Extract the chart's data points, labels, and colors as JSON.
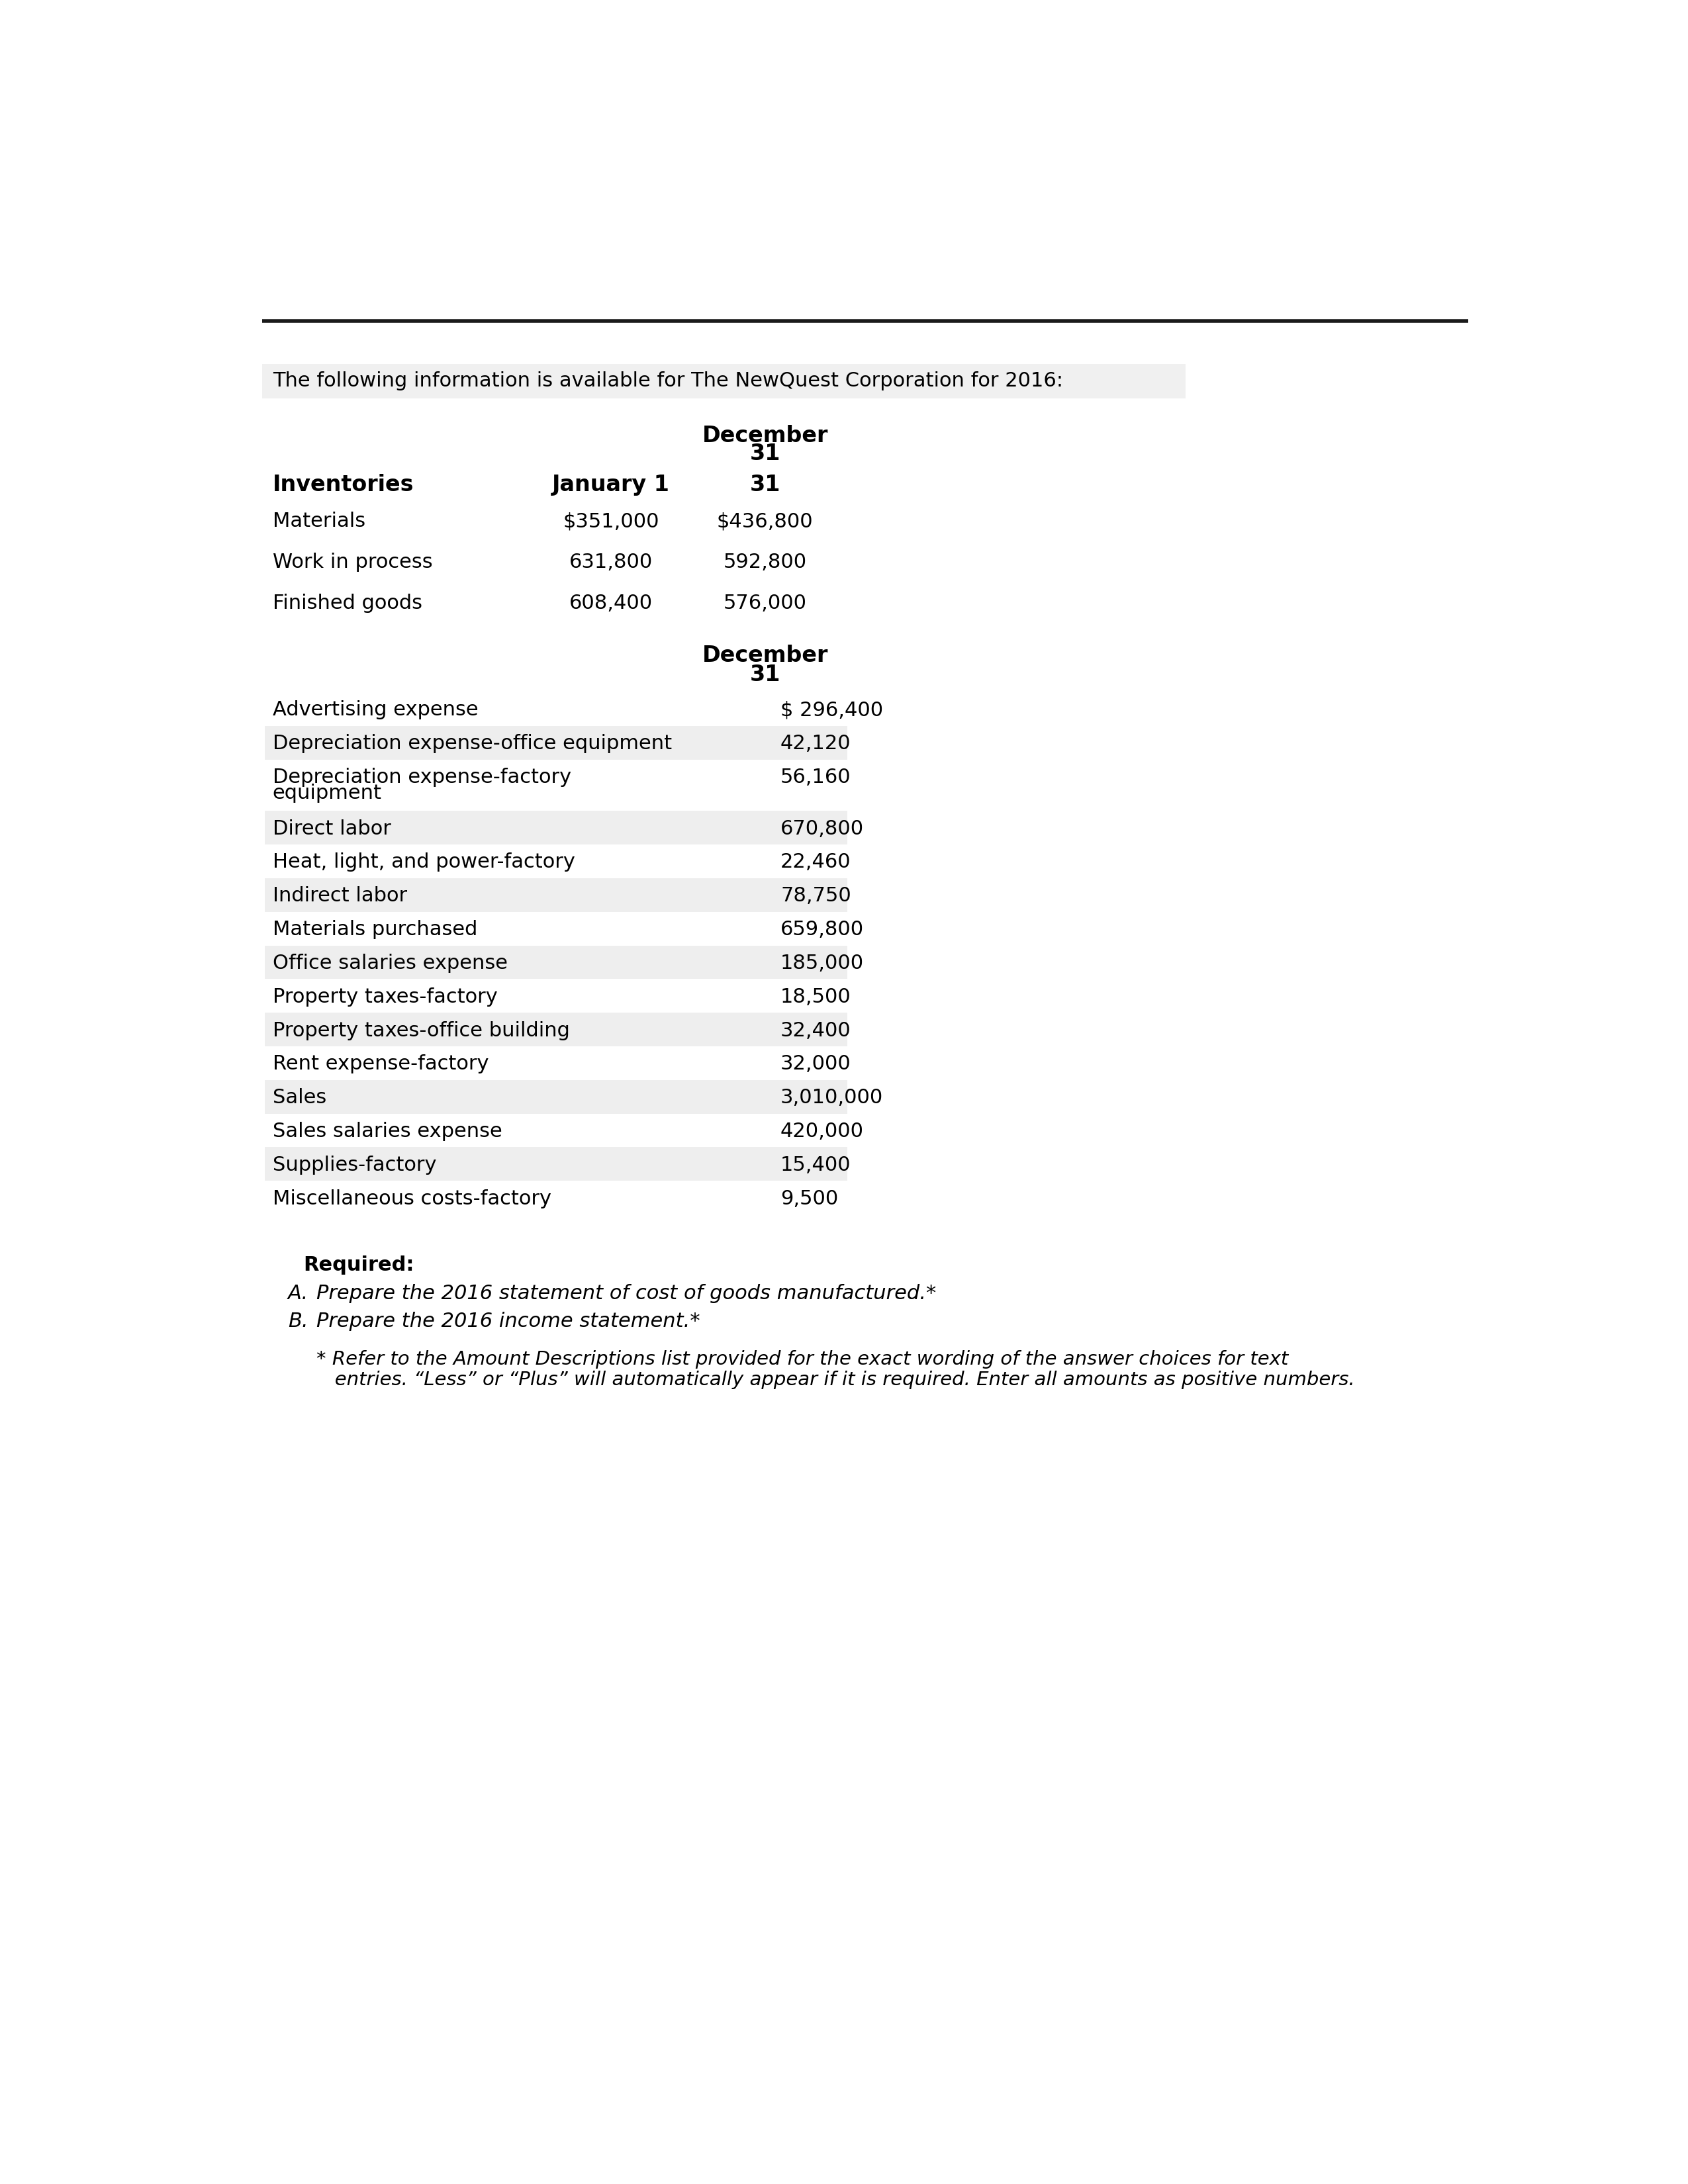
{
  "intro_text": "The following information is available for The NewQuest Corporation for 2016:",
  "inventory_section": {
    "rows": [
      {
        "label": "Materials",
        "jan1": "$351,000",
        "dec31": "$436,800"
      },
      {
        "label": "Work in process",
        "jan1": "631,800",
        "dec31": "592,800"
      },
      {
        "label": "Finished goods",
        "jan1": "608,400",
        "dec31": "576,000"
      }
    ]
  },
  "expense_section": {
    "rows": [
      {
        "label": "Advertising expense",
        "value": "$ 296,400",
        "shaded": false,
        "multiline": false
      },
      {
        "label": "Depreciation expense-office equipment",
        "value": "42,120",
        "shaded": true,
        "multiline": false
      },
      {
        "label": "Depreciation expense-factory",
        "label2": "equipment",
        "value": "56,160",
        "shaded": false,
        "multiline": true
      },
      {
        "label": "Direct labor",
        "value": "670,800",
        "shaded": true,
        "multiline": false
      },
      {
        "label": "Heat, light, and power-factory",
        "value": "22,460",
        "shaded": false,
        "multiline": false
      },
      {
        "label": "Indirect labor",
        "value": "78,750",
        "shaded": true,
        "multiline": false
      },
      {
        "label": "Materials purchased",
        "value": "659,800",
        "shaded": false,
        "multiline": false
      },
      {
        "label": "Office salaries expense",
        "value": "185,000",
        "shaded": true,
        "multiline": false
      },
      {
        "label": "Property taxes-factory",
        "value": "18,500",
        "shaded": false,
        "multiline": false
      },
      {
        "label": "Property taxes-office building",
        "value": "32,400",
        "shaded": true,
        "multiline": false
      },
      {
        "label": "Rent expense-factory",
        "value": "32,000",
        "shaded": false,
        "multiline": false
      },
      {
        "label": "Sales",
        "value": "3,010,000",
        "shaded": true,
        "multiline": false
      },
      {
        "label": "Sales salaries expense",
        "value": "420,000",
        "shaded": false,
        "multiline": false
      },
      {
        "label": "Supplies-factory",
        "value": "15,400",
        "shaded": true,
        "multiline": false
      },
      {
        "label": "Miscellaneous costs-factory",
        "value": "9,500",
        "shaded": false,
        "multiline": false
      }
    ]
  },
  "required_section": {
    "title": "Required:",
    "items": [
      {
        "label": "A.",
        "text": "Prepare the 2016 statement of cost of goods manufactured.*"
      },
      {
        "label": "B.",
        "text": "Prepare the 2016 income statement.*"
      }
    ],
    "footnote_line1": "* Refer to the Amount Descriptions list provided for the exact wording of the answer choices for text",
    "footnote_line2": "   entries. “Less” or “Plus” will automatically appear if it is required. Enter all amounts as positive numbers."
  },
  "bg_color": "#ffffff",
  "shade_color": "#eeeeee",
  "intro_bg": "#f0f0f0",
  "text_color": "#000000",
  "line_color": "#1a1a1a"
}
